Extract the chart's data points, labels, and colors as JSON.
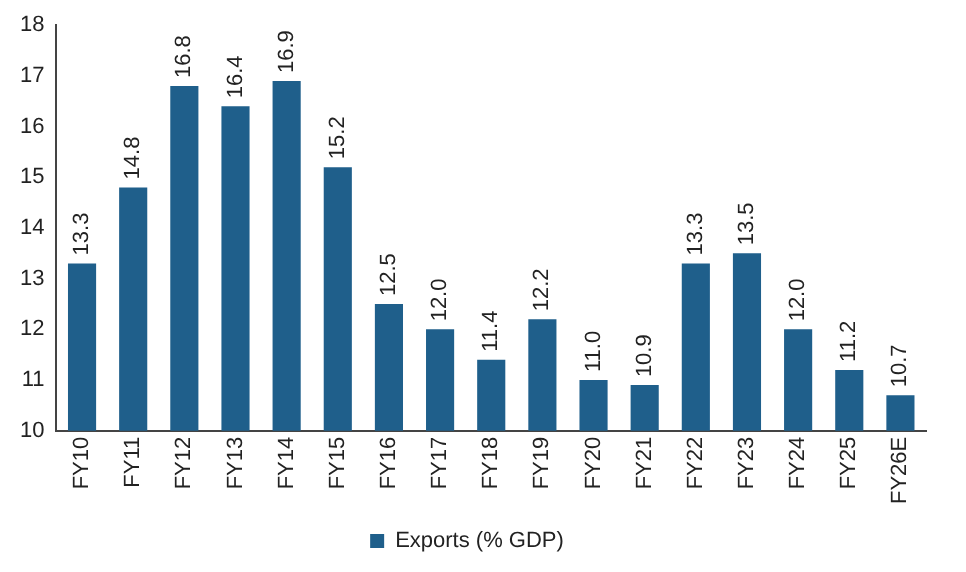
{
  "chart_data": {
    "type": "bar",
    "categories": [
      "FY10",
      "FY11",
      "FY12",
      "FY13",
      "FY14",
      "FY15",
      "FY16",
      "FY17",
      "FY18",
      "FY19",
      "FY20",
      "FY21",
      "FY22",
      "FY23",
      "FY24",
      "FY25",
      "FY26E"
    ],
    "series": [
      {
        "name": "Exports (% GDP)",
        "color": "#1f5f8b",
        "values": [
          13.3,
          14.8,
          16.8,
          16.4,
          16.9,
          15.2,
          12.5,
          12.0,
          11.4,
          12.2,
          11.0,
          10.9,
          13.3,
          13.5,
          12.0,
          11.2,
          10.7
        ],
        "value_labels": [
          "13.3",
          "14.8",
          "16.8",
          "16.4",
          "16.9",
          "15.2",
          "12.5",
          "12.0",
          "11.4",
          "12.2",
          "11.0",
          "10.9",
          "13.3",
          "13.5",
          "12.0",
          "11.2",
          "10.7"
        ]
      }
    ],
    "ylim": [
      10,
      18
    ],
    "yticks": [
      10,
      11,
      12,
      13,
      14,
      15,
      16,
      17,
      18
    ],
    "grid": false,
    "legend": "bottom"
  }
}
